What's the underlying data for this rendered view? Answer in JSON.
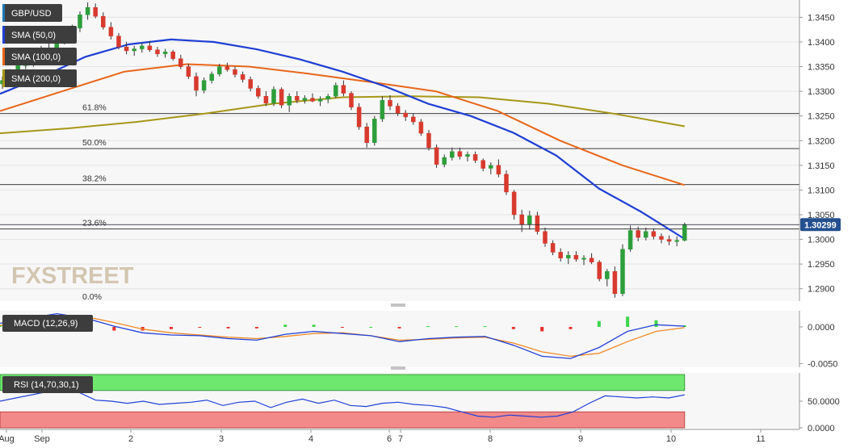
{
  "chart_data": {
    "type": "candlestick",
    "symbol": "GBP/USD",
    "x_tick_labels": [
      "Aug",
      "Sep",
      "2",
      "3",
      "4",
      "6",
      "7",
      "8",
      "9",
      "10",
      "11"
    ],
    "price_axis": {
      "ylim": [
        1.2875,
        1.3485
      ],
      "tick_labels": [
        "1.3450",
        "1.3400",
        "1.3350",
        "1.3300",
        "1.3250",
        "1.3200",
        "1.3150",
        "1.3100",
        "1.3050",
        "1.3000",
        "1.2950",
        "1.2900"
      ],
      "tick_values": [
        1.345,
        1.34,
        1.335,
        1.33,
        1.325,
        1.32,
        1.315,
        1.31,
        1.305,
        1.3,
        1.295,
        1.29
      ],
      "last_price_label": "1.30299",
      "last_price": 1.30299
    },
    "legend": [
      {
        "name": "GBP/USD",
        "color": "#1f77b4"
      },
      {
        "name": "SMA (50,0)",
        "color": "#1f3fd4"
      },
      {
        "name": "SMA (100,0)",
        "color": "#e8661a"
      },
      {
        "name": "SMA (200,0)",
        "color": "#a69718"
      }
    ],
    "fibonacci": [
      {
        "label": "61.8%",
        "value": 1.3255
      },
      {
        "label": "50.0%",
        "value": 1.3184
      },
      {
        "label": "38.2%",
        "value": 1.3111
      },
      {
        "label": "23.6%",
        "value": 1.3021
      },
      {
        "label": "0.0%",
        "value": 1.2875
      }
    ],
    "candles": [
      [
        0,
        1.3315,
        1.333,
        1.3305,
        1.3322
      ],
      [
        1,
        1.3322,
        1.3345,
        1.3315,
        1.3338
      ],
      [
        2,
        1.3338,
        1.336,
        1.333,
        1.3352
      ],
      [
        3,
        1.3352,
        1.337,
        1.3345,
        1.336
      ],
      [
        4,
        1.336,
        1.3378,
        1.335,
        1.3372
      ],
      [
        5,
        1.3372,
        1.3392,
        1.3365,
        1.3385
      ],
      [
        6,
        1.3385,
        1.34,
        1.3372,
        1.3378
      ],
      [
        7,
        1.3378,
        1.341,
        1.3375,
        1.3402
      ],
      [
        8,
        1.3402,
        1.342,
        1.3395,
        1.3415
      ],
      [
        9,
        1.3415,
        1.3435,
        1.3405,
        1.3428
      ],
      [
        10,
        1.3428,
        1.3462,
        1.342,
        1.3455
      ],
      [
        11,
        1.3455,
        1.348,
        1.3445,
        1.347
      ],
      [
        12,
        1.347,
        1.3478,
        1.3448,
        1.3452
      ],
      [
        13,
        1.3452,
        1.346,
        1.3425,
        1.343
      ],
      [
        14,
        1.343,
        1.344,
        1.3405,
        1.3412
      ],
      [
        15,
        1.3412,
        1.3418,
        1.3385,
        1.339
      ],
      [
        16,
        1.339,
        1.34,
        1.3375,
        1.3382
      ],
      [
        17,
        1.3382,
        1.3392,
        1.3372,
        1.3386
      ],
      [
        18,
        1.3386,
        1.3398,
        1.3378,
        1.3392
      ],
      [
        19,
        1.3392,
        1.3402,
        1.338,
        1.3384
      ],
      [
        20,
        1.3384,
        1.339,
        1.337,
        1.3376
      ],
      [
        21,
        1.3376,
        1.3386,
        1.3368,
        1.338
      ],
      [
        22,
        1.338,
        1.3384,
        1.3362,
        1.3366
      ],
      [
        23,
        1.3366,
        1.3374,
        1.3345,
        1.335
      ],
      [
        24,
        1.335,
        1.3356,
        1.3325,
        1.333
      ],
      [
        25,
        1.333,
        1.3338,
        1.329,
        1.3302
      ],
      [
        26,
        1.3302,
        1.3328,
        1.3296,
        1.3322
      ],
      [
        27,
        1.3322,
        1.334,
        1.3316,
        1.3335
      ],
      [
        28,
        1.3335,
        1.3356,
        1.333,
        1.335
      ],
      [
        29,
        1.335,
        1.3358,
        1.334,
        1.3344
      ],
      [
        30,
        1.3344,
        1.335,
        1.3328,
        1.3334
      ],
      [
        31,
        1.3334,
        1.334,
        1.3318,
        1.3324
      ],
      [
        32,
        1.3324,
        1.333,
        1.33,
        1.3306
      ],
      [
        33,
        1.3306,
        1.3312,
        1.3285,
        1.329
      ],
      [
        34,
        1.329,
        1.33,
        1.327,
        1.3276
      ],
      [
        35,
        1.3276,
        1.331,
        1.327,
        1.3304
      ],
      [
        36,
        1.3304,
        1.3308,
        1.3266,
        1.3272
      ],
      [
        37,
        1.3272,
        1.3296,
        1.3258,
        1.329
      ],
      [
        38,
        1.329,
        1.33,
        1.3276,
        1.3282
      ],
      [
        39,
        1.3282,
        1.3292,
        1.3275,
        1.3286
      ],
      [
        40,
        1.3286,
        1.3296,
        1.3278,
        1.328
      ],
      [
        41,
        1.328,
        1.329,
        1.327,
        1.3284
      ],
      [
        42,
        1.3284,
        1.3295,
        1.3276,
        1.329
      ],
      [
        43,
        1.329,
        1.3318,
        1.3286,
        1.3312
      ],
      [
        44,
        1.3312,
        1.3322,
        1.329,
        1.3296
      ],
      [
        45,
        1.3296,
        1.33,
        1.3262,
        1.3268
      ],
      [
        46,
        1.3268,
        1.3276,
        1.3222,
        1.3228
      ],
      [
        47,
        1.3228,
        1.3236,
        1.3186,
        1.3196
      ],
      [
        48,
        1.3196,
        1.325,
        1.319,
        1.3244
      ],
      [
        49,
        1.3244,
        1.329,
        1.3238,
        1.3282
      ],
      [
        50,
        1.3282,
        1.3292,
        1.3262,
        1.327
      ],
      [
        51,
        1.327,
        1.3276,
        1.325,
        1.3256
      ],
      [
        52,
        1.3256,
        1.3262,
        1.324,
        1.3248
      ],
      [
        53,
        1.3248,
        1.3256,
        1.3232,
        1.3238
      ],
      [
        54,
        1.3238,
        1.3244,
        1.321,
        1.3215
      ],
      [
        55,
        1.3215,
        1.3222,
        1.318,
        1.3186
      ],
      [
        56,
        1.3186,
        1.3192,
        1.3145,
        1.3152
      ],
      [
        57,
        1.3152,
        1.3172,
        1.3146,
        1.3166
      ],
      [
        58,
        1.3166,
        1.3186,
        1.316,
        1.3178
      ],
      [
        59,
        1.3178,
        1.3186,
        1.3162,
        1.3168
      ],
      [
        60,
        1.3168,
        1.3178,
        1.3158,
        1.3172
      ],
      [
        61,
        1.3172,
        1.3178,
        1.3155,
        1.316
      ],
      [
        62,
        1.316,
        1.3164,
        1.3138,
        1.3144
      ],
      [
        63,
        1.3144,
        1.3156,
        1.3132,
        1.315
      ],
      [
        64,
        1.315,
        1.3162,
        1.3126,
        1.3132
      ],
      [
        65,
        1.3132,
        1.314,
        1.309,
        1.3096
      ],
      [
        66,
        1.3096,
        1.31,
        1.304,
        1.305
      ],
      [
        67,
        1.305,
        1.306,
        1.3015,
        1.303
      ],
      [
        68,
        1.303,
        1.3058,
        1.302,
        1.3048
      ],
      [
        69,
        1.3048,
        1.3056,
        1.301,
        1.3016
      ],
      [
        70,
        1.3016,
        1.3024,
        1.2985,
        1.2992
      ],
      [
        71,
        1.2992,
        1.2998,
        1.2968,
        1.2974
      ],
      [
        72,
        1.2974,
        1.2982,
        1.2955,
        1.2962
      ],
      [
        73,
        1.2962,
        1.2976,
        1.295,
        1.2968
      ],
      [
        74,
        1.2968,
        1.2976,
        1.2955,
        1.296
      ],
      [
        75,
        1.296,
        1.2968,
        1.2948,
        1.2962
      ],
      [
        76,
        1.2962,
        1.2972,
        1.295,
        1.2954
      ],
      [
        77,
        1.2954,
        1.2958,
        1.2915,
        1.292
      ],
      [
        78,
        1.292,
        1.294,
        1.2905,
        1.2935
      ],
      [
        79,
        1.2935,
        1.2945,
        1.2882,
        1.289
      ],
      [
        80,
        1.289,
        1.299,
        1.2885,
        1.298
      ],
      [
        81,
        1.298,
        1.3028,
        1.2975,
        1.3018
      ],
      [
        82,
        1.3018,
        1.3026,
        1.2996,
        1.3004
      ],
      [
        83,
        1.3004,
        1.3024,
        1.2998,
        1.3016
      ],
      [
        84,
        1.3016,
        1.3022,
        1.3,
        1.3006
      ],
      [
        85,
        1.3006,
        1.3012,
        1.2992,
        1.3
      ],
      [
        86,
        1.3,
        1.3008,
        1.2988,
        1.2996
      ],
      [
        87,
        1.2996,
        1.3006,
        1.2986,
        1.2998
      ],
      [
        88,
        1.2998,
        1.3034,
        1.2996,
        1.303
      ]
    ],
    "sma50": [
      1.3295,
      1.333,
      1.337,
      1.3395,
      1.3405,
      1.34,
      1.3385,
      1.3365,
      1.334,
      1.331,
      1.3275,
      1.325,
      1.3216,
      1.317,
      1.3103,
      1.3055,
      1.3001
    ],
    "sma100": [
      1.326,
      1.33,
      1.334,
      1.3355,
      1.335,
      1.3335,
      1.3318,
      1.33,
      1.326,
      1.32,
      1.315,
      1.311
    ],
    "sma200": [
      1.3215,
      1.3225,
      1.3238,
      1.3255,
      1.3275,
      1.3288,
      1.329,
      1.3288,
      1.3275,
      1.3254,
      1.3229
    ],
    "macd": {
      "label": "MACD (12,26,9)",
      "y_tick_labels": [
        "0.0000",
        "-0.0050"
      ],
      "y_tick_values": [
        0,
        -0.005
      ],
      "ylim": [
        -0.0055,
        0.0022
      ],
      "macd": [
        0.0005,
        0.0012,
        0.0018,
        0.0012,
        0.0001,
        -0.0008,
        -0.0011,
        -0.0012,
        -0.0016,
        -0.0018,
        -0.001,
        -0.0006,
        -0.0009,
        -0.0012,
        -0.002,
        -0.0016,
        -0.0014,
        -0.0013,
        -0.0025,
        -0.004,
        -0.0043,
        -0.0028,
        -0.0006,
        0.0003,
        0.0001
      ],
      "signal": [
        0.0002,
        0.0008,
        0.0015,
        0.0014,
        0.0006,
        -0.0003,
        -0.0008,
        -0.0011,
        -0.0014,
        -0.0016,
        -0.0013,
        -0.0009,
        -0.0008,
        -0.0012,
        -0.0018,
        -0.0017,
        -0.0015,
        -0.0014,
        -0.0022,
        -0.0034,
        -0.004,
        -0.0036,
        -0.002,
        -0.0006,
        -0.0001
      ],
      "histogram": [
        0.0003,
        0.0004,
        0.0003,
        -0.0002,
        -0.0005,
        -0.0005,
        -0.0003,
        -0.0001,
        -0.0002,
        -0.0002,
        0.0003,
        0.0003,
        -0.0001,
        0.0,
        -0.0002,
        0.0001,
        0.0001,
        0.0001,
        -0.0003,
        -0.0006,
        -0.0003,
        0.0008,
        0.0014,
        0.0009,
        0.0002
      ]
    },
    "rsi": {
      "label": "RSI (14,70,30,1)",
      "y_tick_labels": [
        "50.0000",
        "0.0000"
      ],
      "y_tick_values": [
        50,
        0
      ],
      "ylim": [
        -3,
        103
      ],
      "overbought": 70,
      "oversold": 30,
      "values": [
        50,
        56,
        62,
        68,
        72,
        66,
        52,
        50,
        46,
        50,
        44,
        46,
        48,
        52,
        42,
        48,
        50,
        38,
        48,
        54,
        46,
        52,
        42,
        40,
        46,
        48,
        44,
        42,
        38,
        30,
        22,
        20,
        24,
        22,
        20,
        22,
        30,
        46,
        60,
        58,
        56,
        58,
        56,
        62
      ]
    },
    "watermark": "FXSTREET"
  }
}
